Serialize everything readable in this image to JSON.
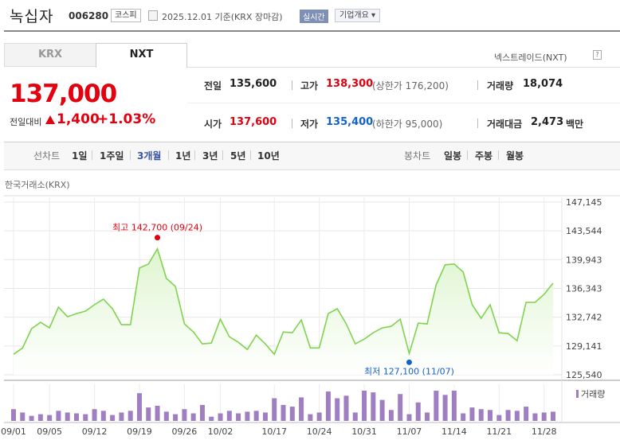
{
  "header": {
    "name": "녹십자",
    "code": "006280",
    "market_badge": "코스피",
    "date_text": "2025.12.01  기준(KRX 장마감)",
    "realtime": "실시간",
    "company_info": "기업개요 ▾"
  },
  "tabs": {
    "krx": "KRX",
    "nxt": "NXT",
    "nxt_link": "넥스트레이드(NXT)",
    "help": "?"
  },
  "price": {
    "current": "137,000",
    "diff_label": "전일대비",
    "diff": "1,400",
    "pct": "+1.03%"
  },
  "stats": {
    "prev_label": "전일",
    "prev": "135,600",
    "high_label": "고가",
    "high": "138,300",
    "upper_limit": "(상한가 176,200)",
    "volume_label": "거래량",
    "volume": "18,074",
    "open_label": "시가",
    "open": "137,600",
    "low_label": "저가",
    "low": "135,400",
    "lower_limit": "(하한가 95,000)",
    "amount_label": "거래대금",
    "amount": "2,473",
    "amount_unit": "백만"
  },
  "periods": {
    "line_label": "선차트",
    "line_items": [
      "1일",
      "1주일",
      "3개월",
      "1년",
      "3년",
      "5년",
      "10년"
    ],
    "active": "3개월",
    "candle_label": "봉차트",
    "candle_items": [
      "일봉",
      "주봉",
      "월봉"
    ]
  },
  "colors": {
    "up": "#e3000f",
    "down": "#1461c8",
    "line": "#7ed34f",
    "area": "#dff5d0",
    "volume": "#9f7fc2",
    "active_period": "#3a55a4"
  },
  "chart_data": {
    "type": "area",
    "market_label": "한국거래소(KRX)",
    "ylim": [
      125540,
      147145
    ],
    "yticks": [
      "147,145",
      "143,544",
      "139,943",
      "136,343",
      "132,742",
      "129,141",
      "125,540"
    ],
    "ytick_values": [
      147145,
      143544,
      139943,
      136343,
      132742,
      129141,
      125540
    ],
    "xticks": [
      "09/01",
      "09/05",
      "09/12",
      "09/19",
      "09/26",
      "10/02",
      "10/17",
      "10/24",
      "10/31",
      "11/07",
      "11/14",
      "11/21",
      "11/28"
    ],
    "xtick_index": [
      0,
      4,
      9,
      14,
      19,
      23,
      29,
      34,
      39,
      44,
      49,
      54,
      59
    ],
    "values": [
      128100,
      128900,
      131300,
      132100,
      131400,
      134000,
      132800,
      133200,
      133500,
      134300,
      135000,
      133800,
      131800,
      131800,
      138900,
      139400,
      141300,
      137600,
      136600,
      131900,
      130900,
      129400,
      129500,
      132500,
      130300,
      129600,
      128700,
      130500,
      129400,
      128100,
      130900,
      130800,
      132400,
      128900,
      128900,
      133200,
      133800,
      131900,
      129400,
      130000,
      130800,
      131400,
      131600,
      132500,
      128200,
      132000,
      131900,
      136800,
      139300,
      139400,
      138400,
      134300,
      132600,
      134300,
      130800,
      130700,
      129800,
      134600,
      134600,
      135600,
      137000
    ],
    "volume_label": "거래량",
    "volumes": [
      14,
      10,
      6,
      8,
      7,
      12,
      10,
      9,
      8,
      14,
      12,
      7,
      10,
      12,
      33,
      16,
      18,
      11,
      8,
      14,
      9,
      19,
      5,
      9,
      12,
      9,
      11,
      12,
      10,
      27,
      19,
      17,
      28,
      8,
      10,
      35,
      27,
      30,
      10,
      36,
      34,
      25,
      13,
      32,
      8,
      22,
      10,
      36,
      31,
      36,
      9,
      16,
      14,
      13,
      7,
      13,
      12,
      17,
      9,
      10,
      11
    ],
    "max_label": "최고 142,700 (09/24)",
    "max_index": 16,
    "max_value": 142700,
    "min_label": "최저 127,100 (11/07)",
    "min_index": 44,
    "min_value": 127100
  }
}
